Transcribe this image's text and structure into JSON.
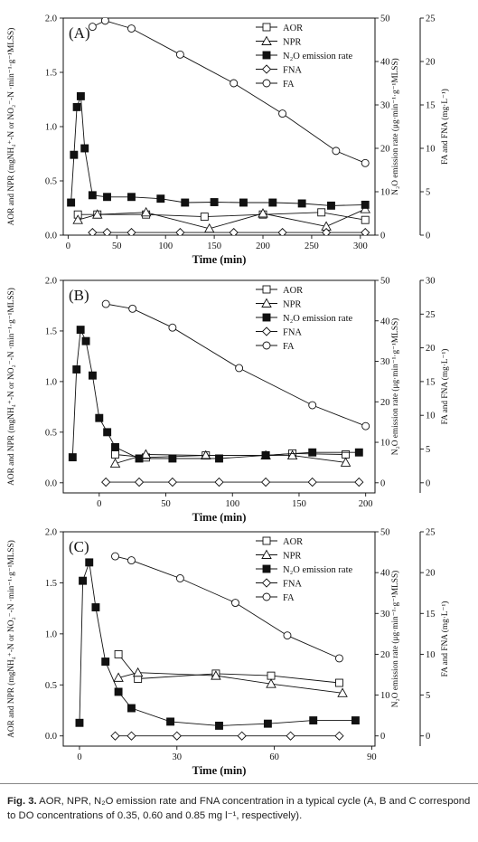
{
  "caption": {
    "label": "Fig. 3.",
    "text": "AOR, NPR, N₂O emission rate and FNA concentration in a typical cycle (A, B and C correspond to DO concentrations of 0.35, 0.60 and 0.85 mg l⁻¹, respectively)."
  },
  "chart_data": [
    {
      "type": "line",
      "panel_label": "(A)",
      "xlabel": "Time (min)",
      "ylabel_left": "AOR and NPR (mgNH₄⁺-N or NO₂⁻-N ·min⁻¹·g⁻¹MLSS)",
      "ylabel_right1": "N₂O emission rate (μg·min⁻¹·g⁻¹MLSS)",
      "ylabel_right2": "FA and FNA (mg·L⁻¹)",
      "xlim": [
        -5,
        315
      ],
      "xticks": [
        0,
        50,
        100,
        150,
        200,
        250,
        300
      ],
      "ylim_left": [
        0,
        2.0
      ],
      "yticks_left": [
        0.0,
        0.5,
        1.0,
        1.5,
        2.0
      ],
      "ylim_right1": [
        0,
        50
      ],
      "yticks_right1": [
        0,
        10,
        20,
        30,
        40,
        50
      ],
      "ylim_right2": [
        0,
        25
      ],
      "yticks_right2": [
        0,
        5,
        10,
        15,
        20,
        25
      ],
      "legend": [
        "AOR",
        "NPR",
        "N₂O emission rate",
        "FNA",
        "FA"
      ],
      "series": [
        {
          "name": "AOR",
          "marker": "square-open",
          "axis": "left",
          "x": [
            10,
            30,
            80,
            140,
            200,
            260,
            305
          ],
          "y": [
            0.19,
            0.19,
            0.19,
            0.17,
            0.19,
            0.21,
            0.14
          ]
        },
        {
          "name": "NPR",
          "marker": "triangle-open",
          "axis": "left",
          "x": [
            10,
            30,
            80,
            145,
            200,
            265,
            305
          ],
          "y": [
            0.14,
            0.19,
            0.21,
            0.06,
            0.2,
            0.08,
            0.24
          ]
        },
        {
          "name": "N₂O emission rate",
          "marker": "square-filled",
          "axis": "right1",
          "x": [
            3,
            6,
            9,
            13,
            17,
            25,
            40,
            65,
            95,
            120,
            150,
            180,
            210,
            240,
            270,
            305
          ],
          "y": [
            7.5,
            18.5,
            29.5,
            32.0,
            20.0,
            9.2,
            8.8,
            8.8,
            8.4,
            7.5,
            7.6,
            7.5,
            7.5,
            7.3,
            6.8,
            7.0
          ]
        },
        {
          "name": "FNA",
          "marker": "diamond-open",
          "axis": "right2",
          "x": [
            25,
            40,
            65,
            115,
            170,
            220,
            265,
            305
          ],
          "y": [
            0.3,
            0.3,
            0.3,
            0.3,
            0.3,
            0.3,
            0.3,
            0.3
          ]
        },
        {
          "name": "FA",
          "marker": "circle-open",
          "axis": "right2",
          "x": [
            25,
            38,
            65,
            115,
            170,
            220,
            275,
            305
          ],
          "y": [
            24.0,
            24.7,
            23.8,
            20.8,
            17.5,
            14.0,
            9.7,
            8.3
          ]
        }
      ]
    },
    {
      "type": "line",
      "panel_label": "(B)",
      "xlabel": "Time (min)",
      "ylabel_left": "AOR and NPR (mgNH₄⁺-N or NO₂⁻-N ·min⁻¹·g⁻¹MLSS)",
      "ylabel_right1": "N₂O emission rate (μg·min⁻¹·g⁻¹MLSS)",
      "ylabel_right2": "FA and FNA (mg·L⁻¹)",
      "xlim": [
        -27,
        207
      ],
      "xticks": [
        0,
        50,
        100,
        150,
        200
      ],
      "ylim_left": [
        -0.1,
        2.0
      ],
      "yticks_left": [
        0.0,
        0.5,
        1.0,
        1.5,
        2.0
      ],
      "ylim_right1": [
        -2.5,
        50
      ],
      "yticks_right1": [
        0,
        10,
        20,
        30,
        40,
        50
      ],
      "ylim_right2": [
        -1.5,
        30
      ],
      "yticks_right2": [
        0,
        5,
        10,
        15,
        20,
        25,
        30
      ],
      "legend": [
        "AOR",
        "NPR",
        "N₂O emission rate",
        "FNA",
        "FA"
      ],
      "series": [
        {
          "name": "AOR",
          "marker": "square-open",
          "axis": "left",
          "x": [
            12,
            35,
            80,
            125,
            145,
            185
          ],
          "y": [
            0.28,
            0.25,
            0.27,
            0.27,
            0.29,
            0.28
          ]
        },
        {
          "name": "NPR",
          "marker": "triangle-open",
          "axis": "left",
          "x": [
            12,
            35,
            80,
            125,
            145,
            185
          ],
          "y": [
            0.19,
            0.28,
            0.27,
            0.27,
            0.27,
            0.2
          ]
        },
        {
          "name": "N₂O emission rate",
          "marker": "square-filled",
          "axis": "right1",
          "x": [
            -20,
            -17,
            -14,
            -10,
            -5,
            0,
            6,
            12,
            30,
            55,
            90,
            125,
            160,
            195
          ],
          "y": [
            6.3,
            28.0,
            37.8,
            35.0,
            26.5,
            16.0,
            12.5,
            8.8,
            6.0,
            6.0,
            6.0,
            6.8,
            7.5,
            7.5
          ]
        },
        {
          "name": "FNA",
          "marker": "diamond-open",
          "axis": "right2",
          "x": [
            5,
            30,
            55,
            90,
            125,
            160,
            195
          ],
          "y": [
            0.1,
            0.1,
            0.1,
            0.1,
            0.1,
            0.1,
            0.1
          ]
        },
        {
          "name": "FA",
          "marker": "circle-open",
          "axis": "right2",
          "x": [
            5,
            25,
            55,
            105,
            160,
            200
          ],
          "y": [
            26.5,
            25.8,
            23.0,
            17.0,
            11.5,
            8.4
          ]
        }
      ]
    },
    {
      "type": "line",
      "panel_label": "(C)",
      "xlabel": "Time (min)",
      "ylabel_left": "AOR and NPR (mgNH₄⁺-N or NO₂⁻-N ·min⁻¹·g⁻¹MLSS)",
      "ylabel_right1": "N₂O emission rate (μg·min⁻¹·g⁻¹MLSS)",
      "ylabel_right2": "FA and FNA (mg·L⁻¹)",
      "xlim": [
        -5,
        91
      ],
      "xticks": [
        0,
        30,
        60,
        90
      ],
      "ylim_left": [
        -0.1,
        2.0
      ],
      "yticks_left": [
        0.0,
        0.5,
        1.0,
        1.5,
        2.0
      ],
      "ylim_right1": [
        -2.5,
        50
      ],
      "yticks_right1": [
        0,
        10,
        20,
        30,
        40,
        50
      ],
      "ylim_right2": [
        -1.25,
        25
      ],
      "yticks_right2": [
        0,
        5,
        10,
        15,
        20,
        25
      ],
      "legend": [
        "AOR",
        "NPR",
        "N₂O emission rate",
        "FNA",
        "FA"
      ],
      "series": [
        {
          "name": "AOR",
          "marker": "square-open",
          "axis": "left",
          "x": [
            12,
            18,
            42,
            59,
            80
          ],
          "y": [
            0.8,
            0.56,
            0.61,
            0.59,
            0.52
          ]
        },
        {
          "name": "NPR",
          "marker": "triangle-open",
          "axis": "left",
          "x": [
            12,
            18,
            42,
            59,
            81
          ],
          "y": [
            0.57,
            0.62,
            0.59,
            0.51,
            0.42
          ]
        },
        {
          "name": "N₂O emission rate",
          "marker": "square-filled",
          "axis": "right1",
          "x": [
            0,
            1,
            3,
            5,
            8,
            12,
            16,
            28,
            43,
            58,
            72,
            85
          ],
          "y": [
            3.2,
            38.0,
            42.5,
            31.5,
            18.2,
            10.8,
            6.8,
            3.5,
            2.5,
            3.0,
            3.8,
            3.8
          ]
        },
        {
          "name": "FNA",
          "marker": "diamond-open",
          "axis": "right2",
          "x": [
            11,
            16,
            30,
            50,
            65,
            80
          ],
          "y": [
            0.0,
            0.0,
            0.0,
            0.0,
            0.0,
            0.0
          ]
        },
        {
          "name": "FA",
          "marker": "circle-open",
          "axis": "right2",
          "x": [
            11,
            16,
            31,
            48,
            64,
            80
          ],
          "y": [
            22.0,
            21.5,
            19.3,
            16.3,
            12.3,
            9.5
          ]
        }
      ]
    }
  ]
}
